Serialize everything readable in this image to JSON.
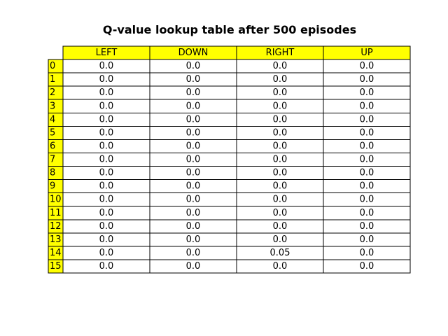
{
  "chart_data": {
    "type": "table",
    "title": "Q-value lookup table after 500 episodes",
    "columns": [
      "LEFT",
      "DOWN",
      "RIGHT",
      "UP"
    ],
    "row_labels": [
      "0",
      "1",
      "2",
      "3",
      "4",
      "5",
      "6",
      "7",
      "8",
      "9",
      "10",
      "11",
      "12",
      "13",
      "14",
      "15"
    ],
    "cells": [
      [
        "0.0",
        "0.0",
        "0.0",
        "0.0"
      ],
      [
        "0.0",
        "0.0",
        "0.0",
        "0.0"
      ],
      [
        "0.0",
        "0.0",
        "0.0",
        "0.0"
      ],
      [
        "0.0",
        "0.0",
        "0.0",
        "0.0"
      ],
      [
        "0.0",
        "0.0",
        "0.0",
        "0.0"
      ],
      [
        "0.0",
        "0.0",
        "0.0",
        "0.0"
      ],
      [
        "0.0",
        "0.0",
        "0.0",
        "0.0"
      ],
      [
        "0.0",
        "0.0",
        "0.0",
        "0.0"
      ],
      [
        "0.0",
        "0.0",
        "0.0",
        "0.0"
      ],
      [
        "0.0",
        "0.0",
        "0.0",
        "0.0"
      ],
      [
        "0.0",
        "0.0",
        "0.0",
        "0.0"
      ],
      [
        "0.0",
        "0.0",
        "0.0",
        "0.0"
      ],
      [
        "0.0",
        "0.0",
        "0.0",
        "0.0"
      ],
      [
        "0.0",
        "0.0",
        "0.0",
        "0.0"
      ],
      [
        "0.0",
        "0.0",
        "0.05",
        "0.0"
      ],
      [
        "0.0",
        "0.0",
        "0.0",
        "0.0"
      ]
    ],
    "header_color": "#ffff00",
    "cell_color": "#ffffff",
    "border_color": "#000000"
  }
}
